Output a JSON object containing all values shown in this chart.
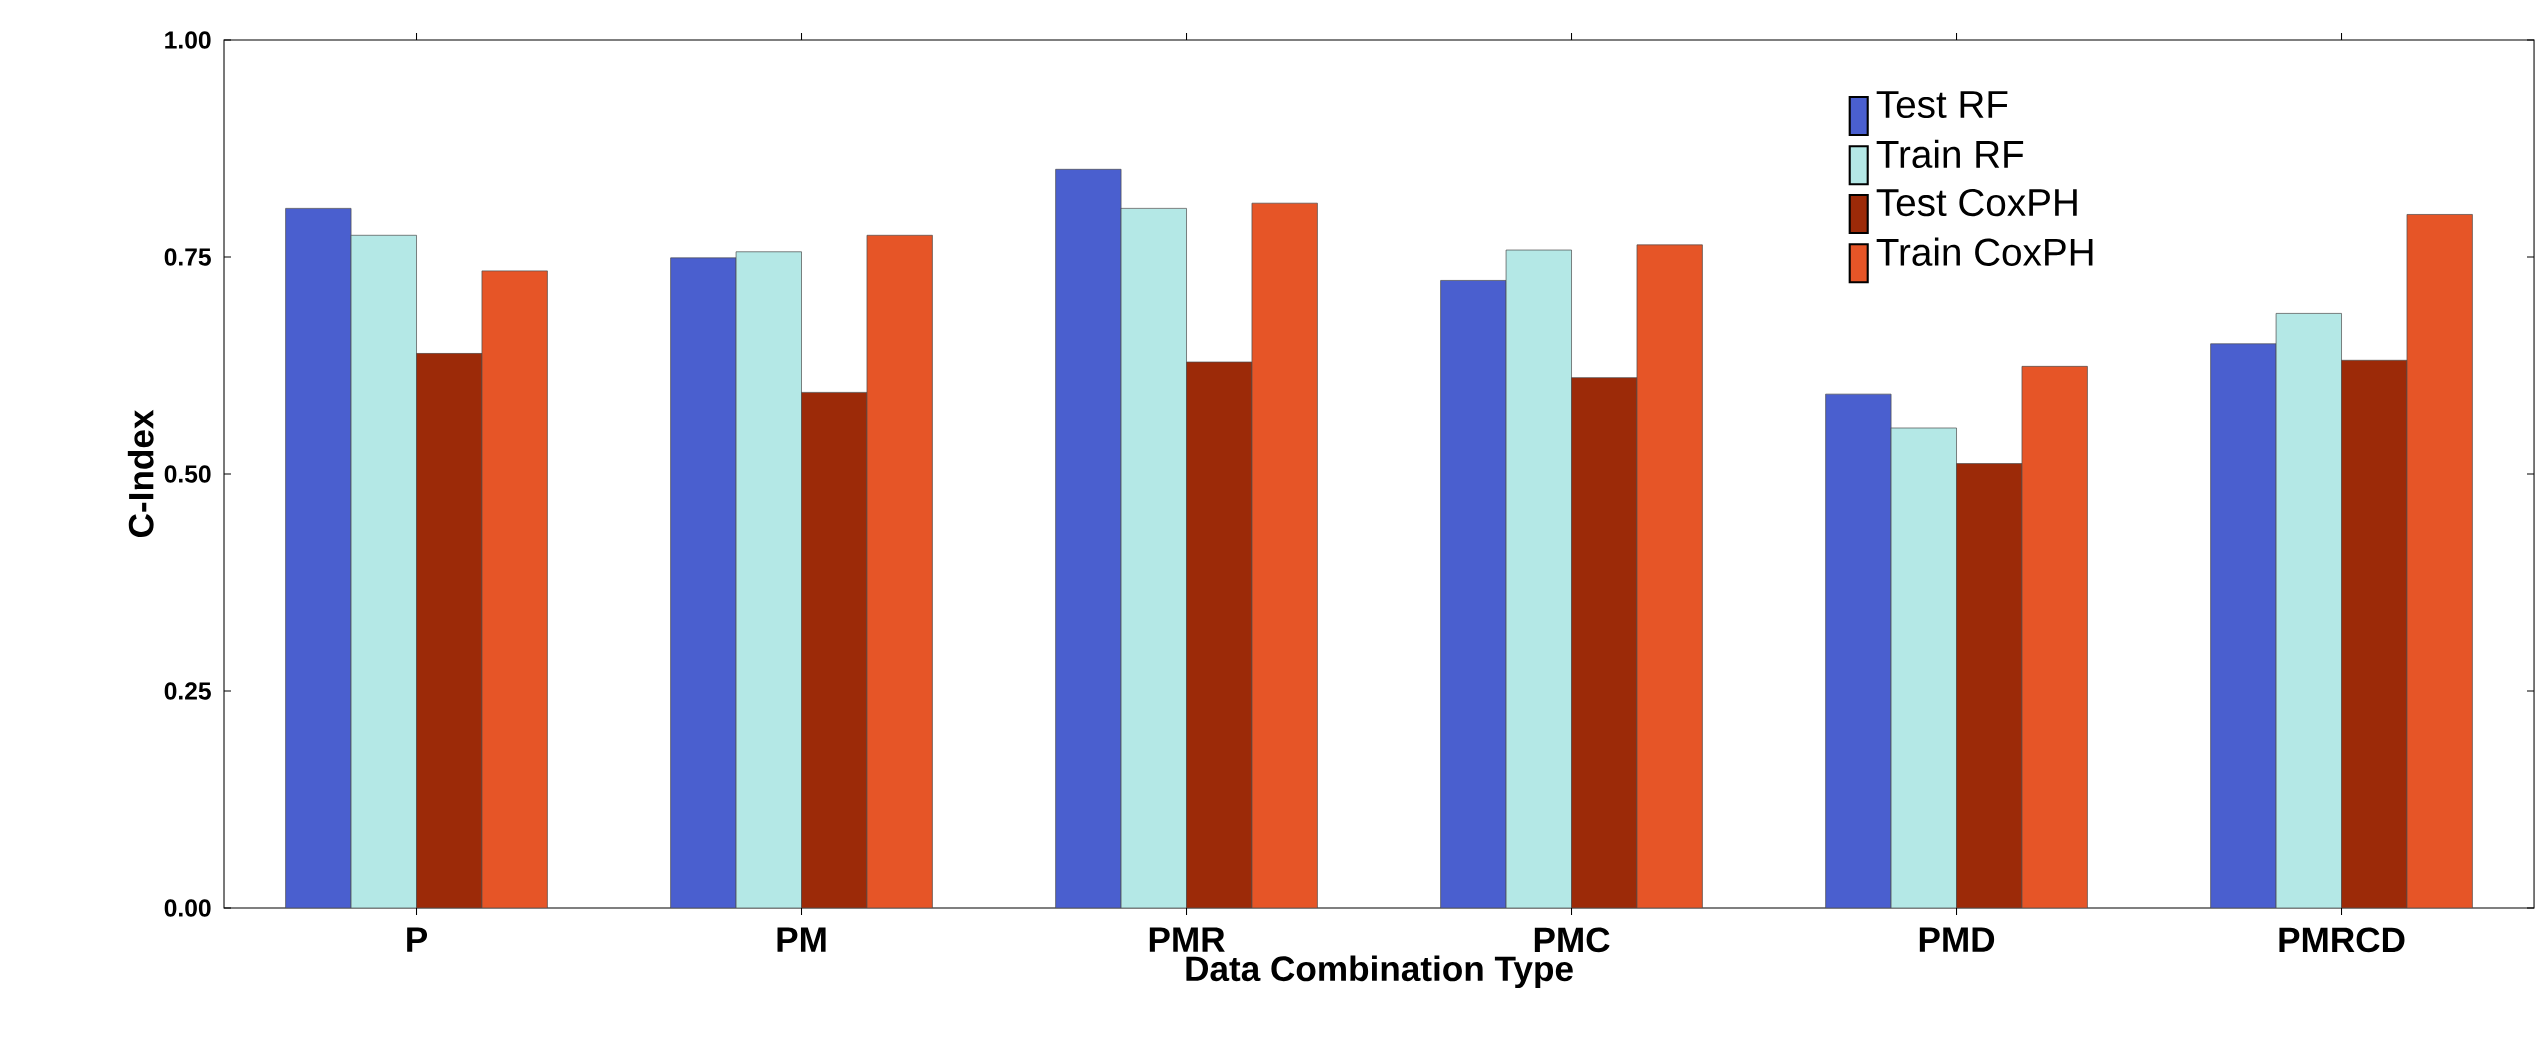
{
  "chart_data": {
    "type": "bar",
    "xlabel": "Data Combination Type",
    "ylabel": "C-Index",
    "categories": [
      "P",
      "PM",
      "PMR",
      "PMC",
      "PMD",
      "PMRCD"
    ],
    "series": [
      {
        "name": "Test RF",
        "color": "#4a5fcf",
        "values": [
          0.806,
          0.749,
          0.851,
          0.723,
          0.592,
          0.65
        ]
      },
      {
        "name": "Train RF",
        "color": "#b4e8e6",
        "values": [
          0.775,
          0.756,
          0.806,
          0.758,
          0.553,
          0.685
        ]
      },
      {
        "name": "Test CoxPH",
        "color": "#9c2a08",
        "values": [
          0.639,
          0.594,
          0.629,
          0.611,
          0.512,
          0.631
        ]
      },
      {
        "name": "Train CoxPH",
        "color": "#e65527",
        "values": [
          0.734,
          0.775,
          0.812,
          0.764,
          0.624,
          0.799
        ]
      }
    ],
    "ylim": [
      0,
      1
    ],
    "yticks": [
      {
        "value": 0,
        "label": "0.00"
      },
      {
        "value": 0.25,
        "label": "0.25"
      },
      {
        "value": 0.5,
        "label": "0.50"
      },
      {
        "value": 0.75,
        "label": "0.75"
      },
      {
        "value": 1,
        "label": "1.00"
      }
    ],
    "grid": false,
    "legend": "top right"
  }
}
